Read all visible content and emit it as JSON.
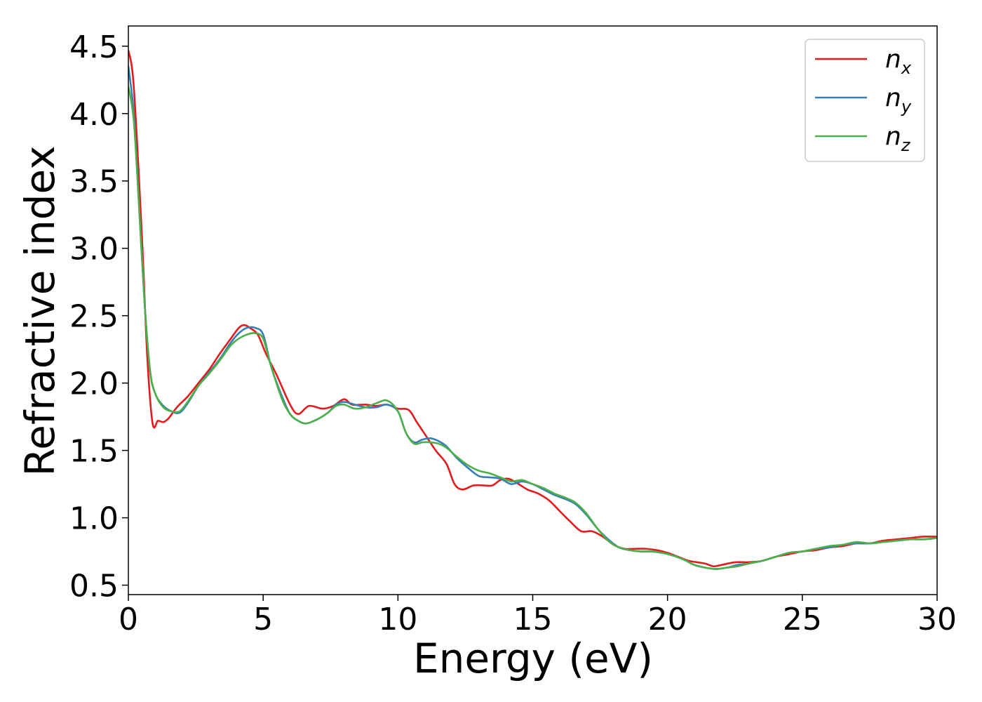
{
  "chart_data": {
    "type": "line",
    "title": "",
    "xlabel": "Energy (eV)",
    "ylabel": "Refractive index",
    "xlim": [
      0,
      30
    ],
    "ylim": [
      0.43,
      4.65
    ],
    "xticks": [
      0,
      5,
      10,
      15,
      20,
      25,
      30
    ],
    "xtick_labels": [
      "0",
      "5",
      "10",
      "15",
      "20",
      "25",
      "30"
    ],
    "yticks": [
      0.5,
      1.0,
      1.5,
      2.0,
      2.5,
      3.0,
      3.5,
      4.0,
      4.5
    ],
    "ytick_labels": [
      "0.5",
      "1.0",
      "1.5",
      "2.0",
      "2.5",
      "3.0",
      "3.5",
      "4.0",
      "4.5"
    ],
    "grid": false,
    "legend_position": "top-right",
    "series": [
      {
        "name": "n_x",
        "label_base": "n",
        "label_sub": "x",
        "color": "#e41a1c",
        "x": [
          0,
          0.2,
          0.5,
          0.7,
          0.9,
          1.1,
          1.3,
          1.5,
          1.8,
          2.2,
          2.6,
          3.0,
          3.4,
          3.8,
          4.1,
          4.3,
          4.5,
          4.8,
          5.1,
          5.5,
          6.0,
          6.3,
          6.7,
          7.2,
          7.6,
          8.0,
          8.3,
          8.8,
          9.2,
          9.6,
          10.0,
          10.4,
          10.7,
          11.0,
          11.4,
          11.8,
          12.1,
          12.4,
          12.8,
          13.2,
          13.5,
          13.8,
          14.1,
          14.4,
          14.8,
          15.2,
          15.6,
          16.0,
          16.4,
          16.8,
          17.2,
          17.6,
          18.0,
          18.4,
          18.8,
          19.2,
          19.6,
          20.0,
          20.4,
          20.8,
          21.1,
          21.4,
          21.7,
          22.0,
          22.5,
          23.0,
          23.5,
          24.0,
          24.5,
          25.0,
          25.5,
          26.0,
          26.5,
          27.0,
          27.5,
          28.0,
          28.5,
          29.0,
          29.5,
          30.0
        ],
        "y": [
          4.47,
          4.2,
          3.1,
          2.2,
          1.7,
          1.72,
          1.71,
          1.74,
          1.82,
          1.9,
          2.0,
          2.1,
          2.22,
          2.33,
          2.41,
          2.43,
          2.41,
          2.36,
          2.22,
          2.06,
          1.84,
          1.77,
          1.83,
          1.81,
          1.83,
          1.88,
          1.84,
          1.84,
          1.83,
          1.84,
          1.81,
          1.8,
          1.71,
          1.62,
          1.5,
          1.4,
          1.25,
          1.21,
          1.24,
          1.24,
          1.24,
          1.28,
          1.29,
          1.26,
          1.21,
          1.18,
          1.13,
          1.05,
          0.97,
          0.9,
          0.9,
          0.86,
          0.8,
          0.77,
          0.77,
          0.77,
          0.76,
          0.74,
          0.71,
          0.68,
          0.67,
          0.66,
          0.64,
          0.65,
          0.67,
          0.67,
          0.68,
          0.71,
          0.73,
          0.75,
          0.76,
          0.78,
          0.79,
          0.81,
          0.81,
          0.83,
          0.84,
          0.85,
          0.86,
          0.86
        ]
      },
      {
        "name": "n_y",
        "label_base": "n",
        "label_sub": "y",
        "color": "#377eb8",
        "x": [
          0,
          0.2,
          0.4,
          0.6,
          0.8,
          1.0,
          1.3,
          1.6,
          1.9,
          2.2,
          2.6,
          3.0,
          3.4,
          3.8,
          4.1,
          4.4,
          4.7,
          5.0,
          5.3,
          5.7,
          6.0,
          6.3,
          6.6,
          7.0,
          7.4,
          7.7,
          8.0,
          8.4,
          8.8,
          9.2,
          9.6,
          10.0,
          10.3,
          10.6,
          10.9,
          11.2,
          11.5,
          11.8,
          12.2,
          12.6,
          13.0,
          13.4,
          13.8,
          14.2,
          14.6,
          15.0,
          15.4,
          15.8,
          16.2,
          16.6,
          17.0,
          17.4,
          17.8,
          18.2,
          18.6,
          19.0,
          19.4,
          19.8,
          20.2,
          20.6,
          21.0,
          21.4,
          21.8,
          22.2,
          22.6,
          23.0,
          23.5,
          24.0,
          24.5,
          25.0,
          25.5,
          26.0,
          26.5,
          27.0,
          27.5,
          28.0,
          28.5,
          29.0,
          29.5,
          30.0
        ],
        "y": [
          4.35,
          4.0,
          3.3,
          2.6,
          2.1,
          1.92,
          1.83,
          1.79,
          1.78,
          1.85,
          1.98,
          2.08,
          2.18,
          2.3,
          2.37,
          2.41,
          2.41,
          2.36,
          2.12,
          1.9,
          1.77,
          1.72,
          1.7,
          1.73,
          1.78,
          1.84,
          1.86,
          1.84,
          1.82,
          1.82,
          1.84,
          1.79,
          1.63,
          1.56,
          1.58,
          1.59,
          1.57,
          1.53,
          1.44,
          1.37,
          1.31,
          1.3,
          1.29,
          1.25,
          1.27,
          1.25,
          1.21,
          1.17,
          1.14,
          1.1,
          1.02,
          0.92,
          0.84,
          0.78,
          0.76,
          0.75,
          0.75,
          0.74,
          0.72,
          0.69,
          0.65,
          0.63,
          0.62,
          0.63,
          0.65,
          0.66,
          0.68,
          0.71,
          0.74,
          0.75,
          0.77,
          0.78,
          0.8,
          0.81,
          0.81,
          0.82,
          0.83,
          0.84,
          0.84,
          0.85
        ]
      },
      {
        "name": "n_z",
        "label_base": "n",
        "label_sub": "z",
        "color": "#4daf4a",
        "x": [
          0,
          0.2,
          0.4,
          0.6,
          0.8,
          1.0,
          1.3,
          1.6,
          1.9,
          2.2,
          2.6,
          3.0,
          3.4,
          3.8,
          4.1,
          4.4,
          4.7,
          5.0,
          5.3,
          5.7,
          6.0,
          6.3,
          6.6,
          7.0,
          7.4,
          7.7,
          8.0,
          8.4,
          8.8,
          9.2,
          9.6,
          10.0,
          10.3,
          10.6,
          10.9,
          11.2,
          11.5,
          11.8,
          12.2,
          12.6,
          13.0,
          13.4,
          13.8,
          14.2,
          14.6,
          15.0,
          15.4,
          15.8,
          16.2,
          16.6,
          17.0,
          17.4,
          17.8,
          18.2,
          18.6,
          19.0,
          19.4,
          19.8,
          20.2,
          20.6,
          21.0,
          21.4,
          21.8,
          22.2,
          22.6,
          23.0,
          23.5,
          24.0,
          24.5,
          25.0,
          25.5,
          26.0,
          26.5,
          27.0,
          27.5,
          28.0,
          28.5,
          29.0,
          29.5,
          30.0
        ],
        "y": [
          4.2,
          3.95,
          3.3,
          2.6,
          2.1,
          1.92,
          1.82,
          1.79,
          1.79,
          1.86,
          1.98,
          2.07,
          2.17,
          2.28,
          2.33,
          2.36,
          2.37,
          2.33,
          2.12,
          1.88,
          1.77,
          1.72,
          1.7,
          1.73,
          1.78,
          1.83,
          1.84,
          1.81,
          1.82,
          1.85,
          1.87,
          1.79,
          1.63,
          1.55,
          1.56,
          1.56,
          1.55,
          1.52,
          1.45,
          1.39,
          1.35,
          1.33,
          1.3,
          1.27,
          1.28,
          1.25,
          1.22,
          1.18,
          1.15,
          1.11,
          1.03,
          0.92,
          0.83,
          0.78,
          0.76,
          0.75,
          0.75,
          0.74,
          0.72,
          0.69,
          0.65,
          0.63,
          0.62,
          0.63,
          0.64,
          0.66,
          0.68,
          0.71,
          0.74,
          0.75,
          0.77,
          0.79,
          0.8,
          0.82,
          0.81,
          0.82,
          0.83,
          0.84,
          0.84,
          0.85
        ]
      }
    ]
  }
}
